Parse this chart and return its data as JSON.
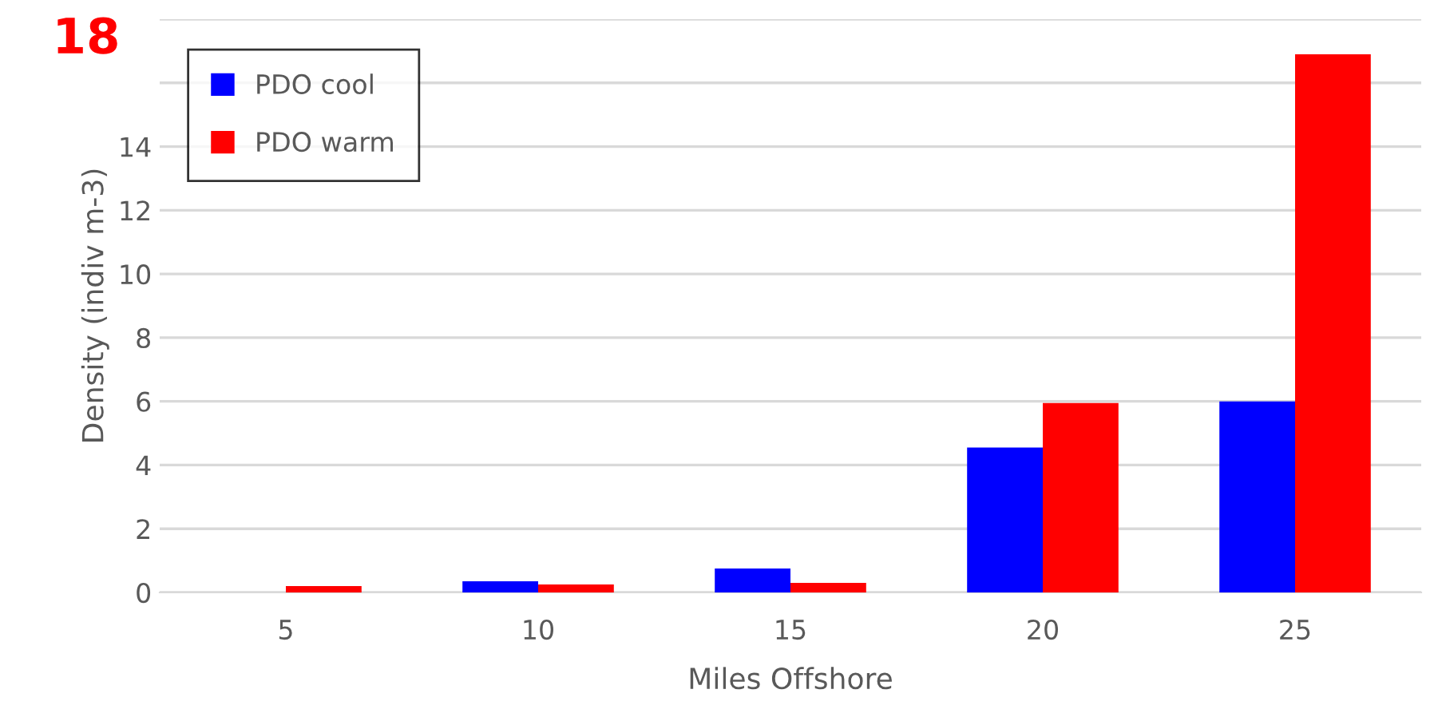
{
  "chart_data": {
    "type": "bar",
    "xlabel": "Miles Offshore",
    "ylabel": "Density (indiv m-3)",
    "categories": [
      "5",
      "10",
      "15",
      "20",
      "25"
    ],
    "series": [
      {
        "name": "PDO cool",
        "color": "#0000ff",
        "values": [
          null,
          0.35,
          0.75,
          4.55,
          6.0
        ]
      },
      {
        "name": "PDO warm",
        "color": "#ff0000",
        "values": [
          0.2,
          0.25,
          0.3,
          5.95,
          16.9
        ]
      }
    ],
    "ylim": [
      0,
      18
    ],
    "yticks": [
      0,
      2,
      4,
      6,
      8,
      10,
      12,
      14,
      {
        "value": 16,
        "label": null
      },
      {
        "value": 18,
        "label": null
      }
    ],
    "annotations": [
      "18"
    ],
    "grid": "y",
    "legend": "top left"
  }
}
